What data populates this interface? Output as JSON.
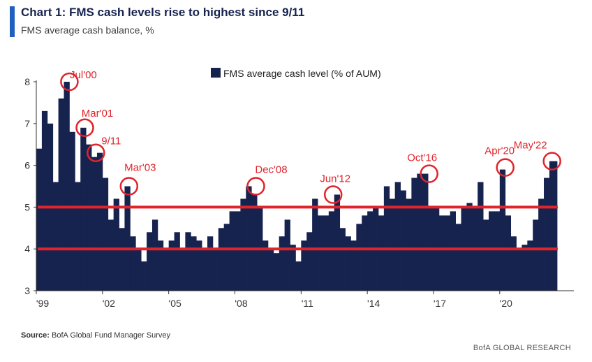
{
  "header": {
    "title": "Chart 1: FMS cash levels rise to highest since 9/11",
    "subtitle": "FMS average cash balance, %"
  },
  "footer": {
    "source_label": "Source:",
    "source_text": "BofA Global Fund Manager Survey",
    "brand": "BofA GLOBAL RESEARCH"
  },
  "colors": {
    "bars": "#16234f",
    "accent": "#1f5fbf",
    "highlight": "#e0242b",
    "axis": "#333333"
  },
  "chart_data": {
    "type": "bar",
    "title": "Chart 1: FMS cash levels rise to highest since 9/11",
    "subtitle": "FMS average cash balance, %",
    "xlabel": "",
    "ylabel": "",
    "ylim": [
      3,
      8
    ],
    "yticks": [
      3,
      4,
      5,
      6,
      7,
      8
    ],
    "xlim": [
      1999.0,
      2022.6
    ],
    "xtick_labels": [
      {
        "x": 1999.0,
        "label": "'99"
      },
      {
        "x": 2002.0,
        "label": "'02"
      },
      {
        "x": 2005.0,
        "label": "'05"
      },
      {
        "x": 2008.0,
        "label": "'08"
      },
      {
        "x": 2011.0,
        "label": "'11"
      },
      {
        "x": 2014.0,
        "label": "'14"
      },
      {
        "x": 2017.0,
        "label": "'17"
      },
      {
        "x": 2020.0,
        "label": "'20"
      }
    ],
    "legend": {
      "position": "top-center",
      "entries": [
        "FMS average cash level (% of AUM)"
      ]
    },
    "grid": false,
    "series": [
      {
        "name": "FMS average cash level (% of AUM)",
        "x": [
          1999.0,
          1999.25,
          1999.5,
          1999.75,
          2000.0,
          2000.25,
          2000.5,
          2000.75,
          2001.0,
          2001.25,
          2001.5,
          2001.75,
          2002.0,
          2002.25,
          2002.5,
          2002.75,
          2003.0,
          2003.25,
          2003.5,
          2003.75,
          2004.0,
          2004.25,
          2004.5,
          2004.75,
          2005.0,
          2005.25,
          2005.5,
          2005.75,
          2006.0,
          2006.25,
          2006.5,
          2006.75,
          2007.0,
          2007.25,
          2007.5,
          2007.75,
          2008.0,
          2008.25,
          2008.5,
          2008.75,
          2009.0,
          2009.25,
          2009.5,
          2009.75,
          2010.0,
          2010.25,
          2010.5,
          2010.75,
          2011.0,
          2011.25,
          2011.5,
          2011.75,
          2012.0,
          2012.25,
          2012.5,
          2012.75,
          2013.0,
          2013.25,
          2013.5,
          2013.75,
          2014.0,
          2014.25,
          2014.5,
          2014.75,
          2015.0,
          2015.25,
          2015.5,
          2015.75,
          2016.0,
          2016.25,
          2016.5,
          2016.75,
          2017.0,
          2017.25,
          2017.5,
          2017.75,
          2018.0,
          2018.25,
          2018.5,
          2018.75,
          2019.0,
          2019.25,
          2019.5,
          2019.75,
          2020.0,
          2020.25,
          2020.5,
          2020.75,
          2021.0,
          2021.25,
          2021.5,
          2021.75,
          2022.0,
          2022.25,
          2022.42
        ],
        "values": [
          6.4,
          7.3,
          7.0,
          5.6,
          7.6,
          8.0,
          6.8,
          5.6,
          6.9,
          6.5,
          6.2,
          6.3,
          5.7,
          4.7,
          5.2,
          4.5,
          5.5,
          4.3,
          4.0,
          3.7,
          4.4,
          4.7,
          4.2,
          4.0,
          4.2,
          4.4,
          4.0,
          4.4,
          4.3,
          4.2,
          4.0,
          4.3,
          4.0,
          4.5,
          4.6,
          4.9,
          4.9,
          5.2,
          5.5,
          5.3,
          5.0,
          4.2,
          4.0,
          3.9,
          4.3,
          4.7,
          4.1,
          3.7,
          4.2,
          4.4,
          5.2,
          4.8,
          4.8,
          4.9,
          5.3,
          4.5,
          4.3,
          4.2,
          4.6,
          4.8,
          4.9,
          5.0,
          4.8,
          5.5,
          5.2,
          5.6,
          5.4,
          5.2,
          5.7,
          5.8,
          5.8,
          5.0,
          5.0,
          4.8,
          4.8,
          4.9,
          4.6,
          5.0,
          5.1,
          5.0,
          5.6,
          4.7,
          4.9,
          4.9,
          5.9,
          4.8,
          4.3,
          4.0,
          4.1,
          4.2,
          4.7,
          5.2,
          5.7,
          6.1,
          6.1
        ]
      }
    ],
    "reference_lines": [
      5.0,
      4.0
    ],
    "annotations": [
      {
        "label": "Jul'00",
        "x": 2000.5,
        "y": 8.0
      },
      {
        "label": "Mar'01",
        "x": 2001.2,
        "y": 6.9
      },
      {
        "label": "9/11",
        "x": 2001.7,
        "y": 6.3
      },
      {
        "label": "Mar'03",
        "x": 2003.2,
        "y": 5.5
      },
      {
        "label": "Dec'08",
        "x": 2008.95,
        "y": 5.5
      },
      {
        "label": "Jun'12",
        "x": 2012.45,
        "y": 5.3
      },
      {
        "label": "Oct'16",
        "x": 2016.8,
        "y": 5.8
      },
      {
        "label": "Apr'20",
        "x": 2020.25,
        "y": 5.95
      },
      {
        "label": "May'22",
        "x": 2022.37,
        "y": 6.1
      }
    ]
  }
}
